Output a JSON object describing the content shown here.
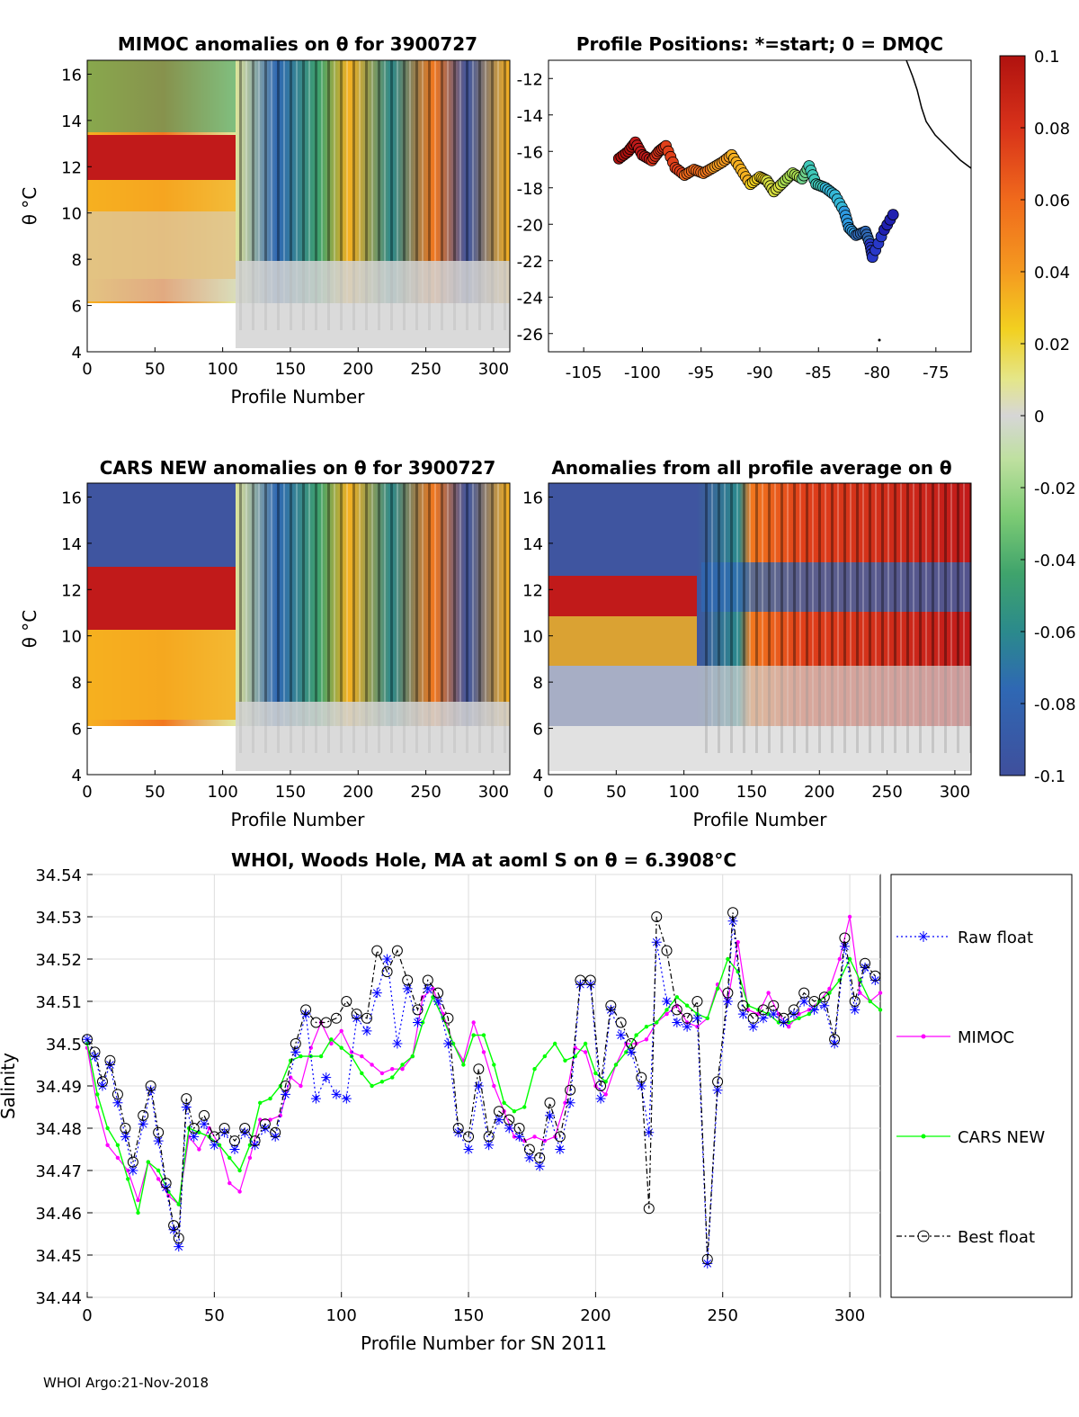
{
  "panels": {
    "mimoc_title": "MIMOC anomalies on θ  for 3900727",
    "positions_title": "Profile Positions: *=start; 0 = DMQC",
    "cars_title": "CARS NEW anomalies on θ for 3900727",
    "allavg_title": "Anomalies from all profile average on θ",
    "ylabel_theta": "θ °C",
    "xlabel_profile": "Profile Number",
    "theta_ticks": [
      "16",
      "14",
      "12",
      "10",
      "8",
      "6",
      "4"
    ],
    "profile_ticks": [
      "0",
      "50",
      "100",
      "150",
      "200",
      "250",
      "300"
    ],
    "lat_ticks": [
      "-12",
      "-14",
      "-16",
      "-18",
      "-20",
      "-22",
      "-24",
      "-26"
    ],
    "lon_ticks": [
      "-105",
      "-100",
      "-95",
      "-90",
      "-85",
      "-80",
      "-75"
    ]
  },
  "colorbar": {
    "ticks": [
      "0.1",
      "0.08",
      "0.06",
      "0.04",
      "0.02",
      "0",
      "-0.02",
      "-0.04",
      "-0.06",
      "-0.08",
      "-0.1"
    ],
    "colors": [
      "#c11a1a",
      "#e0401a",
      "#f2781e",
      "#f6b020",
      "#f1df3a",
      "#e2e79a",
      "#d4d4d4",
      "#b9df9a",
      "#7ccb74",
      "#3fa36c",
      "#2b8a8c",
      "#2f68b4",
      "#3f55a0"
    ]
  },
  "footer": "WHOI Argo:21-Nov-2018",
  "chart_data": {
    "type": "line",
    "title": "WHOI, Woods Hole, MA at aoml S on θ = 6.3908°C",
    "xlabel": "Profile Number for SN 2011",
    "ylabel": "Salinity",
    "xlim": [
      0,
      312
    ],
    "ylim": [
      34.44,
      34.54
    ],
    "xticks": [
      "0",
      "50",
      "100",
      "150",
      "200",
      "250",
      "300"
    ],
    "yticks": [
      "34.54",
      "34.53",
      "34.52",
      "34.51",
      "34.5",
      "34.49",
      "34.48",
      "34.47",
      "34.46",
      "34.45",
      "34.44"
    ],
    "grid": true,
    "legend": [
      "Raw float",
      "MIMOC",
      "CARS NEW",
      "Best float"
    ],
    "series": [
      {
        "name": "Raw float",
        "color": "#0000ff",
        "x": [
          0,
          3,
          6,
          9,
          12,
          15,
          18,
          22,
          25,
          28,
          31,
          34,
          36,
          39,
          42,
          46,
          50,
          54,
          58,
          62,
          66,
          70,
          74,
          78,
          82,
          86,
          90,
          94,
          98,
          102,
          106,
          110,
          114,
          118,
          122,
          126,
          130,
          134,
          138,
          142,
          146,
          150,
          154,
          158,
          162,
          166,
          170,
          174,
          178,
          182,
          186,
          190,
          194,
          198,
          202,
          206,
          210,
          214,
          218,
          221,
          224,
          228,
          232,
          236,
          240,
          244,
          248,
          252,
          254,
          258,
          262,
          266,
          270,
          274,
          278,
          282,
          286,
          290,
          294,
          298,
          302,
          306,
          310
        ],
        "y": [
          34.501,
          34.497,
          34.49,
          34.495,
          34.486,
          34.478,
          34.47,
          34.481,
          34.489,
          34.477,
          34.466,
          34.456,
          34.452,
          34.485,
          34.478,
          34.481,
          34.476,
          34.479,
          34.475,
          34.479,
          34.476,
          34.48,
          34.478,
          34.488,
          34.498,
          34.507,
          34.487,
          34.492,
          34.488,
          34.487,
          34.506,
          34.503,
          34.512,
          34.52,
          34.5,
          34.513,
          34.505,
          34.513,
          34.51,
          34.5,
          34.479,
          34.475,
          34.49,
          34.476,
          34.482,
          34.48,
          34.478,
          34.473,
          34.471,
          34.483,
          34.475,
          34.486,
          34.514,
          34.514,
          34.487,
          34.508,
          34.502,
          34.498,
          34.49,
          34.479,
          34.524,
          34.51,
          34.505,
          34.504,
          34.506,
          34.448,
          34.489,
          34.51,
          34.529,
          34.507,
          34.504,
          34.506,
          34.507,
          34.505,
          34.507,
          34.51,
          34.508,
          34.509,
          34.5,
          34.523,
          34.508,
          34.518,
          34.515
        ]
      },
      {
        "name": "MIMOC",
        "color": "#ff00ff",
        "x": [
          0,
          4,
          8,
          12,
          16,
          20,
          24,
          28,
          32,
          36,
          40,
          44,
          48,
          52,
          56,
          60,
          64,
          68,
          72,
          76,
          80,
          84,
          88,
          92,
          96,
          100,
          104,
          108,
          112,
          116,
          120,
          124,
          128,
          132,
          136,
          140,
          144,
          148,
          152,
          156,
          160,
          164,
          168,
          172,
          176,
          180,
          184,
          188,
          192,
          196,
          200,
          204,
          208,
          212,
          216,
          220,
          224,
          228,
          232,
          236,
          240,
          244,
          248,
          252,
          256,
          260,
          264,
          268,
          272,
          276,
          280,
          284,
          288,
          292,
          296,
          300,
          304,
          308,
          312
        ],
        "y": [
          34.499,
          34.485,
          34.476,
          34.473,
          34.47,
          34.463,
          34.472,
          34.468,
          34.464,
          34.462,
          34.478,
          34.475,
          34.48,
          34.476,
          34.467,
          34.465,
          34.473,
          34.482,
          34.482,
          34.483,
          34.492,
          34.49,
          34.499,
          34.505,
          34.5,
          34.503,
          34.498,
          34.497,
          34.495,
          34.493,
          34.494,
          34.494,
          34.497,
          34.511,
          34.513,
          34.507,
          34.5,
          34.496,
          34.505,
          34.498,
          34.49,
          34.484,
          34.478,
          34.477,
          34.478,
          34.477,
          34.478,
          34.486,
          34.499,
          34.498,
          34.49,
          34.488,
          34.495,
          34.5,
          34.5,
          34.501,
          34.505,
          34.507,
          34.509,
          34.505,
          34.504,
          34.506,
          34.514,
          34.51,
          34.524,
          34.508,
          34.507,
          34.512,
          34.507,
          34.504,
          34.507,
          34.508,
          34.51,
          34.513,
          34.52,
          34.53,
          34.512,
          34.51,
          34.512
        ]
      },
      {
        "name": "CARS NEW",
        "color": "#00ff00",
        "x": [
          0,
          4,
          8,
          12,
          16,
          20,
          24,
          28,
          32,
          36,
          40,
          44,
          48,
          52,
          56,
          60,
          64,
          68,
          72,
          76,
          80,
          84,
          88,
          92,
          96,
          100,
          104,
          108,
          112,
          116,
          120,
          124,
          128,
          132,
          136,
          140,
          144,
          148,
          152,
          156,
          160,
          164,
          168,
          172,
          176,
          180,
          184,
          188,
          192,
          196,
          200,
          204,
          208,
          212,
          216,
          220,
          224,
          228,
          232,
          236,
          240,
          244,
          248,
          252,
          256,
          260,
          264,
          268,
          272,
          276,
          280,
          284,
          288,
          292,
          296,
          300,
          304,
          308,
          312
        ],
        "y": [
          34.5,
          34.488,
          34.48,
          34.476,
          34.468,
          34.46,
          34.472,
          34.47,
          34.465,
          34.462,
          34.48,
          34.479,
          34.478,
          34.476,
          34.473,
          34.47,
          34.476,
          34.486,
          34.487,
          34.49,
          34.496,
          34.497,
          34.497,
          34.497,
          34.501,
          34.499,
          34.497,
          34.493,
          34.49,
          34.491,
          34.492,
          34.495,
          34.497,
          34.505,
          34.511,
          34.506,
          34.5,
          34.495,
          34.502,
          34.502,
          34.495,
          34.486,
          34.484,
          34.485,
          34.494,
          34.497,
          34.5,
          34.496,
          34.497,
          34.5,
          34.493,
          34.491,
          34.495,
          34.498,
          34.502,
          34.504,
          34.505,
          34.508,
          34.511,
          34.509,
          34.507,
          34.506,
          34.513,
          34.52,
          34.517,
          34.509,
          34.508,
          34.507,
          34.505,
          34.505,
          34.506,
          34.507,
          34.51,
          34.512,
          34.515,
          34.52,
          34.515,
          34.51,
          34.508
        ]
      },
      {
        "name": "Best float",
        "color": "#000000",
        "x": [
          0,
          3,
          6,
          9,
          12,
          15,
          18,
          22,
          25,
          28,
          31,
          34,
          36,
          39,
          42,
          46,
          50,
          54,
          58,
          62,
          66,
          70,
          74,
          78,
          82,
          86,
          90,
          94,
          98,
          102,
          106,
          110,
          114,
          118,
          122,
          126,
          130,
          134,
          138,
          142,
          146,
          150,
          154,
          158,
          162,
          166,
          170,
          174,
          178,
          182,
          186,
          190,
          194,
          198,
          202,
          206,
          210,
          214,
          218,
          221,
          224,
          228,
          232,
          236,
          240,
          244,
          248,
          252,
          254,
          258,
          262,
          266,
          270,
          274,
          278,
          282,
          286,
          290,
          294,
          298,
          302,
          306,
          310
        ],
        "y": [
          34.501,
          34.498,
          34.491,
          34.496,
          34.488,
          34.48,
          34.472,
          34.483,
          34.49,
          34.479,
          34.467,
          34.457,
          34.454,
          34.487,
          34.48,
          34.483,
          34.478,
          34.48,
          34.477,
          34.48,
          34.477,
          34.481,
          34.479,
          34.49,
          34.5,
          34.508,
          34.505,
          34.505,
          34.506,
          34.51,
          34.507,
          34.506,
          34.522,
          34.517,
          34.522,
          34.515,
          34.508,
          34.515,
          34.512,
          34.506,
          34.48,
          34.478,
          34.494,
          34.478,
          34.484,
          34.482,
          34.48,
          34.475,
          34.473,
          34.486,
          34.478,
          34.489,
          34.515,
          34.515,
          34.49,
          34.509,
          34.505,
          34.5,
          34.492,
          34.461,
          34.53,
          34.522,
          34.508,
          34.506,
          34.51,
          34.449,
          34.491,
          34.512,
          34.531,
          34.509,
          34.506,
          34.508,
          34.509,
          34.506,
          34.508,
          34.512,
          34.51,
          34.511,
          34.501,
          34.525,
          34.51,
          34.519,
          34.516
        ]
      }
    ]
  }
}
